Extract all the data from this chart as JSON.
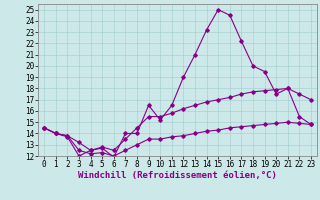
{
  "xlabel": "Windchill (Refroidissement éolien,°C)",
  "xlim": [
    -0.5,
    23.5
  ],
  "ylim": [
    12,
    25.5
  ],
  "xticks": [
    0,
    1,
    2,
    3,
    4,
    5,
    6,
    7,
    8,
    9,
    10,
    11,
    12,
    13,
    14,
    15,
    16,
    17,
    18,
    19,
    20,
    21,
    22,
    23
  ],
  "yticks": [
    12,
    13,
    14,
    15,
    16,
    17,
    18,
    19,
    20,
    21,
    22,
    23,
    24,
    25
  ],
  "bg_color": "#cce8e8",
  "line_color": "#880088",
  "line1_x": [
    0,
    1,
    2,
    3,
    4,
    5,
    6,
    7,
    8,
    9,
    10,
    11,
    12,
    13,
    14,
    15,
    16,
    17,
    18,
    19,
    20,
    21,
    22,
    23
  ],
  "line1_y": [
    14.5,
    14.0,
    13.7,
    12.0,
    12.5,
    12.7,
    11.9,
    14.0,
    14.0,
    16.5,
    15.2,
    16.5,
    19.0,
    21.0,
    23.2,
    25.0,
    24.5,
    22.2,
    20.0,
    19.5,
    17.5,
    18.0,
    15.5,
    14.8
  ],
  "line2_x": [
    0,
    1,
    2,
    3,
    4,
    5,
    6,
    7,
    8,
    9,
    10,
    11,
    12,
    13,
    14,
    15,
    16,
    17,
    18,
    19,
    20,
    21,
    22,
    23
  ],
  "line2_y": [
    14.5,
    14.0,
    13.8,
    13.2,
    12.5,
    12.8,
    12.5,
    13.5,
    14.5,
    15.5,
    15.5,
    15.8,
    16.2,
    16.5,
    16.8,
    17.0,
    17.2,
    17.5,
    17.7,
    17.8,
    17.9,
    18.0,
    17.5,
    17.0
  ],
  "line3_x": [
    0,
    1,
    2,
    3,
    4,
    5,
    6,
    7,
    8,
    9,
    10,
    11,
    12,
    13,
    14,
    15,
    16,
    17,
    18,
    19,
    20,
    21,
    22,
    23
  ],
  "line3_y": [
    14.5,
    14.0,
    13.8,
    12.5,
    12.2,
    12.3,
    12.0,
    12.5,
    13.0,
    13.5,
    13.5,
    13.7,
    13.8,
    14.0,
    14.2,
    14.3,
    14.5,
    14.6,
    14.7,
    14.8,
    14.9,
    15.0,
    14.9,
    14.8
  ],
  "tick_fontsize": 5.5,
  "xlabel_fontsize": 6.5
}
